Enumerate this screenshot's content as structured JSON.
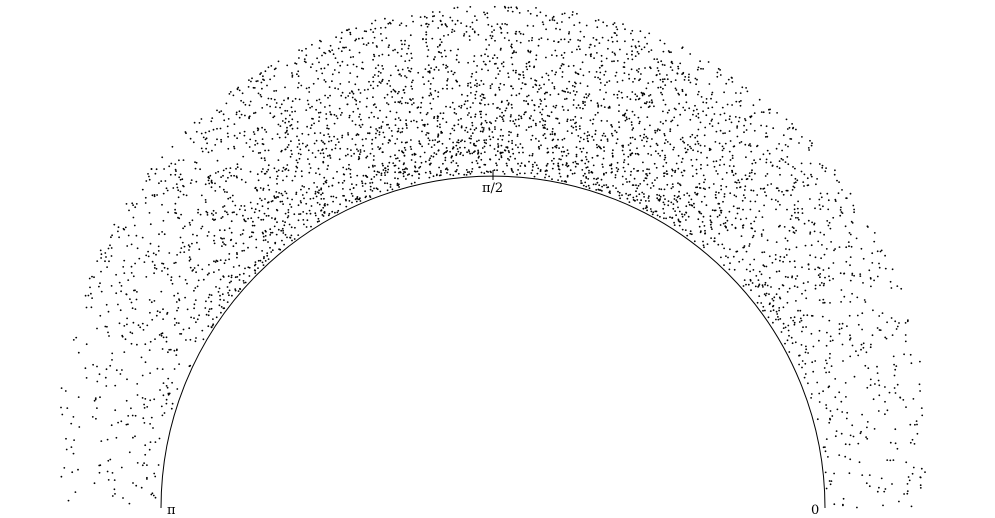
{
  "labels": {
    "left": "π",
    "top": "π/2",
    "right": "0"
  },
  "colors": {
    "background": "#ffffff",
    "ink": "#000000"
  },
  "points": {
    "count": 4200,
    "angle_min": 0,
    "angle_max": 3.14159,
    "unit": "radians"
  }
}
